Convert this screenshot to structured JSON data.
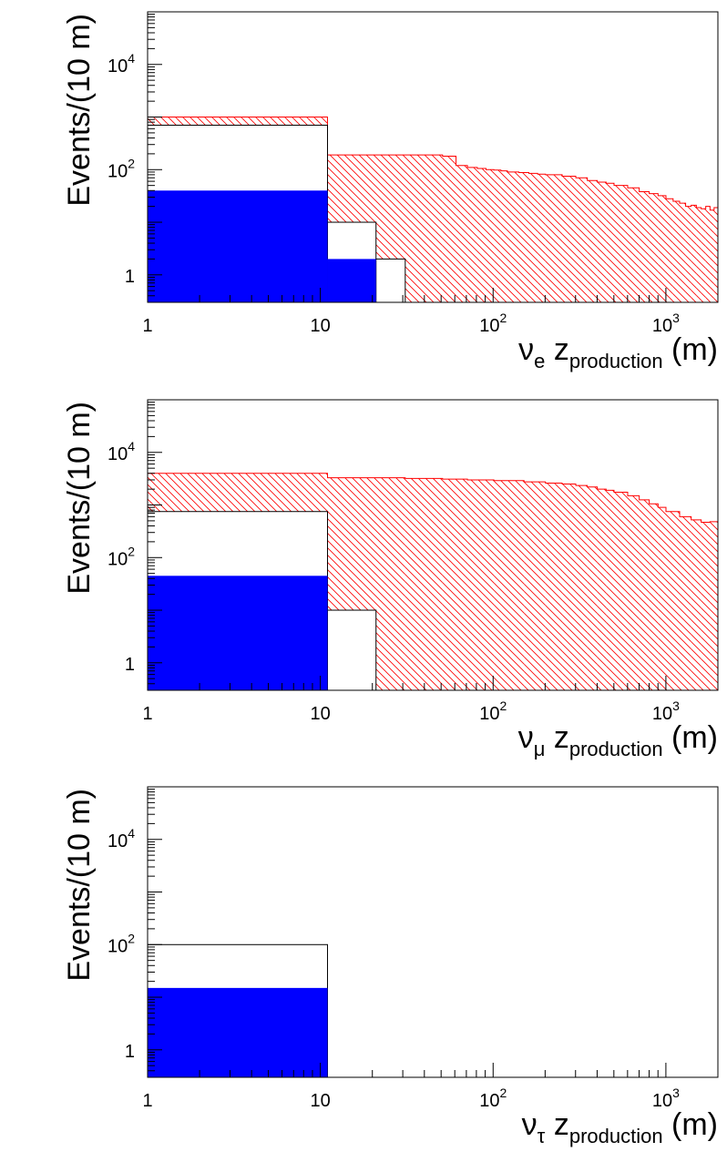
{
  "chart_data": [
    {
      "type": "histogram",
      "xscale": "log",
      "yscale": "log",
      "xlim": [
        1,
        2000
      ],
      "ylim": [
        0.3,
        100000
      ],
      "ylabel": "Events/(10 m)",
      "xlabel": {
        "nu": "ν",
        "flavor": "e",
        "z": "z",
        "sub": "production",
        "unit": "(m)"
      },
      "x_tick_labels": [
        {
          "value": 1,
          "base": "1",
          "exp": ""
        },
        {
          "value": 10,
          "base": "10",
          "exp": ""
        },
        {
          "value": 100,
          "base": "10",
          "exp": "2"
        },
        {
          "value": 1000,
          "base": "10",
          "exp": "3"
        }
      ],
      "y_tick_labels": [
        {
          "value": 1,
          "base": "1",
          "exp": ""
        },
        {
          "value": 100,
          "base": "10",
          "exp": "2"
        },
        {
          "value": 10000,
          "base": "10",
          "exp": "4"
        }
      ],
      "series": [
        {
          "name": "red-hatched",
          "style": "hatched",
          "color": "#ff0000",
          "bin_edges": [
            1,
            11,
            51,
            61,
            71,
            81,
            91,
            101,
            111,
            121,
            141,
            161,
            181,
            201,
            251,
            301,
            351,
            401,
            451,
            501,
            601,
            701,
            801,
            901,
            1001,
            1101,
            1201,
            1301,
            1401,
            1501,
            1601,
            1701,
            1801,
            1901,
            2000
          ],
          "values": [
            1000,
            190,
            180,
            120,
            110,
            105,
            100,
            98,
            95,
            90,
            88,
            85,
            82,
            80,
            75,
            70,
            62,
            58,
            55,
            50,
            45,
            38,
            35,
            32,
            28,
            25,
            23,
            20,
            21,
            19,
            18,
            20,
            17,
            19
          ]
        },
        {
          "name": "white-outline",
          "style": "outline",
          "color": "#000000",
          "bin_edges": [
            1,
            11,
            21,
            31
          ],
          "values": [
            700,
            10,
            2
          ]
        },
        {
          "name": "blue-filled",
          "style": "filled",
          "color": "#0000ff",
          "bin_edges": [
            1,
            11,
            21
          ],
          "values": [
            40,
            2
          ]
        }
      ]
    },
    {
      "type": "histogram",
      "xscale": "log",
      "yscale": "log",
      "xlim": [
        1,
        2000
      ],
      "ylim": [
        0.3,
        100000
      ],
      "ylabel": "Events/(10 m)",
      "xlabel": {
        "nu": "ν",
        "flavor": "μ",
        "z": "z",
        "sub": "production",
        "unit": "(m)"
      },
      "x_tick_labels": [
        {
          "value": 1,
          "base": "1",
          "exp": ""
        },
        {
          "value": 10,
          "base": "10",
          "exp": ""
        },
        {
          "value": 100,
          "base": "10",
          "exp": "2"
        },
        {
          "value": 1000,
          "base": "10",
          "exp": "3"
        }
      ],
      "y_tick_labels": [
        {
          "value": 1,
          "base": "1",
          "exp": ""
        },
        {
          "value": 100,
          "base": "10",
          "exp": "2"
        },
        {
          "value": 10000,
          "base": "10",
          "exp": "4"
        }
      ],
      "series": [
        {
          "name": "red-hatched",
          "style": "hatched",
          "color": "#ff0000",
          "bin_edges": [
            1,
            11,
            31,
            51,
            71,
            101,
            151,
            201,
            251,
            301,
            351,
            401,
            451,
            501,
            601,
            701,
            801,
            901,
            1001,
            1201,
            1401,
            1601,
            1801,
            2000
          ],
          "values": [
            4000,
            3300,
            3200,
            3100,
            3000,
            2900,
            2750,
            2600,
            2500,
            2350,
            2200,
            2000,
            1900,
            1750,
            1500,
            1250,
            1050,
            900,
            750,
            600,
            520,
            470,
            480
          ]
        },
        {
          "name": "white-outline",
          "style": "outline",
          "color": "#000000",
          "bin_edges": [
            1,
            11,
            21
          ],
          "values": [
            750,
            10
          ]
        },
        {
          "name": "blue-filled",
          "style": "filled",
          "color": "#0000ff",
          "bin_edges": [
            1,
            11
          ],
          "values": [
            45
          ]
        }
      ]
    },
    {
      "type": "histogram",
      "xscale": "log",
      "yscale": "log",
      "xlim": [
        1,
        2000
      ],
      "ylim": [
        0.3,
        100000
      ],
      "ylabel": "Events/(10 m)",
      "xlabel": {
        "nu": "ν",
        "flavor": "τ",
        "z": "z",
        "sub": "production",
        "unit": "(m)"
      },
      "x_tick_labels": [
        {
          "value": 1,
          "base": "1",
          "exp": ""
        },
        {
          "value": 10,
          "base": "10",
          "exp": ""
        },
        {
          "value": 100,
          "base": "10",
          "exp": "2"
        },
        {
          "value": 1000,
          "base": "10",
          "exp": "3"
        }
      ],
      "y_tick_labels": [
        {
          "value": 1,
          "base": "1",
          "exp": ""
        },
        {
          "value": 100,
          "base": "10",
          "exp": "2"
        },
        {
          "value": 10000,
          "base": "10",
          "exp": "4"
        }
      ],
      "series": [
        {
          "name": "white-outline",
          "style": "outline",
          "color": "#000000",
          "bin_edges": [
            1,
            11
          ],
          "values": [
            100
          ]
        },
        {
          "name": "blue-filled",
          "style": "filled",
          "color": "#0000ff",
          "bin_edges": [
            1,
            11
          ],
          "values": [
            15
          ]
        }
      ]
    }
  ]
}
